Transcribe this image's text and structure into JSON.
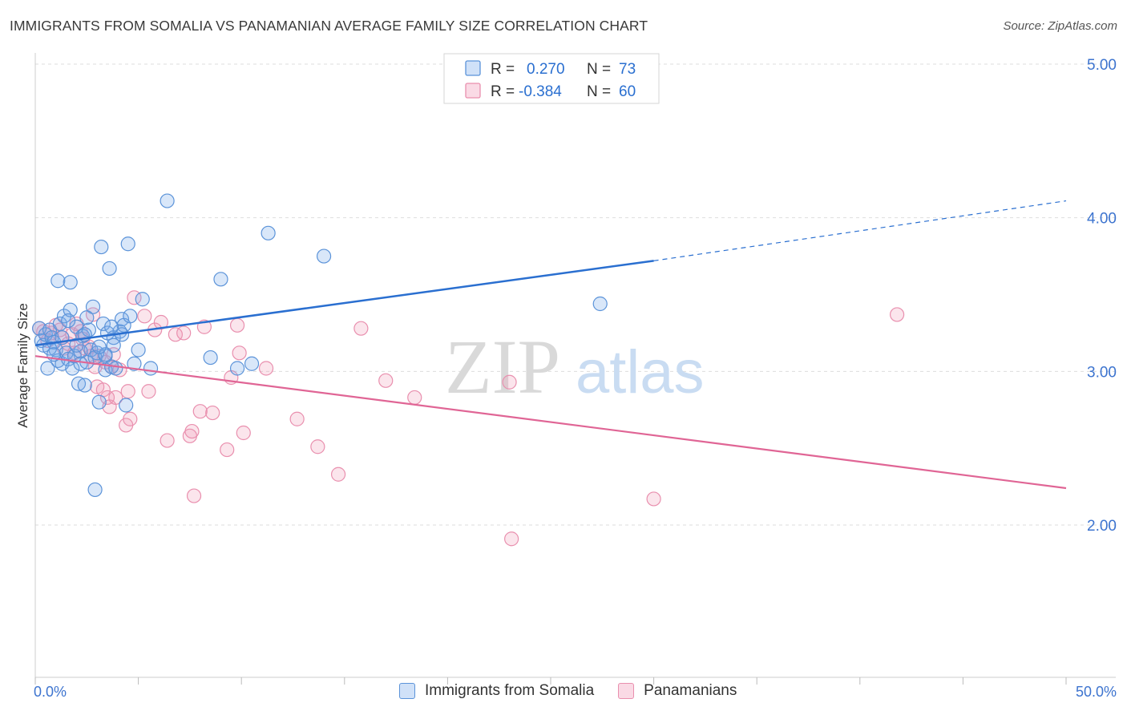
{
  "title": "IMMIGRANTS FROM SOMALIA VS PANAMANIAN AVERAGE FAMILY SIZE CORRELATION CHART",
  "source": "Source: ZipAtlas.com",
  "watermark": {
    "zip": "ZIP",
    "atlas": "atlas"
  },
  "colors": {
    "blue_fill": "rgba(120,170,235,0.28)",
    "blue_stroke": "#5b93d9",
    "blue_line": "#2a6fd0",
    "pink_fill": "rgba(240,150,180,0.25)",
    "pink_stroke": "#e98fae",
    "pink_line": "#e06595",
    "tick_text": "#3d74cf",
    "grid": "#dddddd"
  },
  "legend_top": [
    {
      "r_label": "R =",
      "r_value": "0.270",
      "n_label": "N =",
      "n_value": "73"
    },
    {
      "r_label": "R =",
      "r_value": "-0.384",
      "n_label": "N =",
      "n_value": "60"
    }
  ],
  "legend_bottom": [
    "Immigrants from Somalia",
    "Panamanians"
  ],
  "chart_data": {
    "type": "scatter",
    "title": "IMMIGRANTS FROM SOMALIA VS PANAMANIAN AVERAGE FAMILY SIZE CORRELATION CHART",
    "xlabel": "",
    "ylabel": "Average Family Size",
    "xlim": [
      0,
      0.5
    ],
    "ylim": [
      1.0,
      5.15
    ],
    "x_tick_labels": [
      "0.0%",
      "50.0%"
    ],
    "y_ticks": [
      2.0,
      3.0,
      4.0,
      5.0
    ],
    "y_tick_labels": [
      "2.00",
      "3.00",
      "4.00",
      "5.00"
    ],
    "grid": "horizontal dashed",
    "legend": "top-center",
    "series": [
      {
        "name": "Immigrants from Somalia",
        "color": "blue",
        "trend": {
          "x": [
            0.0,
            0.3,
            0.5
          ],
          "y": [
            3.17,
            3.72,
            4.11
          ],
          "dashed_from_x": 0.3
        },
        "points": [
          [
            0.002,
            3.28
          ],
          [
            0.003,
            3.2
          ],
          [
            0.004,
            3.17
          ],
          [
            0.005,
            3.24
          ],
          [
            0.006,
            3.02
          ],
          [
            0.007,
            3.27
          ],
          [
            0.008,
            3.22
          ],
          [
            0.009,
            3.19
          ],
          [
            0.01,
            3.14
          ],
          [
            0.011,
            3.07
          ],
          [
            0.012,
            3.31
          ],
          [
            0.013,
            3.05
          ],
          [
            0.011,
            3.59
          ],
          [
            0.014,
            3.36
          ],
          [
            0.015,
            3.12
          ],
          [
            0.016,
            3.08
          ],
          [
            0.017,
            3.4
          ],
          [
            0.018,
            3.02
          ],
          [
            0.017,
            3.58
          ],
          [
            0.019,
            3.1
          ],
          [
            0.02,
            3.29
          ],
          [
            0.021,
            2.92
          ],
          [
            0.022,
            3.13
          ],
          [
            0.023,
            3.23
          ],
          [
            0.024,
            2.91
          ],
          [
            0.025,
            3.06
          ],
          [
            0.026,
            3.27
          ],
          [
            0.024,
            3.24
          ],
          [
            0.027,
            3.14
          ],
          [
            0.028,
            3.42
          ],
          [
            0.029,
            2.23
          ],
          [
            0.03,
            3.12
          ],
          [
            0.031,
            2.8
          ],
          [
            0.032,
            3.81
          ],
          [
            0.033,
            3.31
          ],
          [
            0.034,
            3.01
          ],
          [
            0.035,
            3.25
          ],
          [
            0.034,
            3.1
          ],
          [
            0.036,
            3.67
          ],
          [
            0.037,
            3.03
          ],
          [
            0.038,
            3.22
          ],
          [
            0.038,
            3.17
          ],
          [
            0.039,
            3.02
          ],
          [
            0.041,
            3.26
          ],
          [
            0.042,
            3.34
          ],
          [
            0.043,
            3.3
          ],
          [
            0.042,
            3.24
          ],
          [
            0.044,
            2.78
          ],
          [
            0.045,
            3.83
          ],
          [
            0.046,
            3.36
          ],
          [
            0.048,
            3.05
          ],
          [
            0.05,
            3.14
          ],
          [
            0.052,
            3.47
          ],
          [
            0.056,
            3.02
          ],
          [
            0.064,
            4.11
          ],
          [
            0.085,
            3.09
          ],
          [
            0.09,
            3.6
          ],
          [
            0.098,
            3.02
          ],
          [
            0.105,
            3.05
          ],
          [
            0.113,
            3.9
          ],
          [
            0.14,
            3.75
          ],
          [
            0.274,
            3.44
          ],
          [
            0.016,
            3.33
          ],
          [
            0.022,
            3.05
          ],
          [
            0.029,
            3.09
          ],
          [
            0.034,
            3.11
          ],
          [
            0.007,
            3.15
          ],
          [
            0.013,
            3.22
          ],
          [
            0.009,
            3.11
          ],
          [
            0.02,
            3.17
          ],
          [
            0.025,
            3.35
          ],
          [
            0.031,
            3.16
          ],
          [
            0.037,
            3.29
          ]
        ]
      },
      {
        "name": "Panamanians",
        "color": "pink",
        "trend": {
          "x": [
            0.0,
            0.5
          ],
          "y": [
            3.1,
            2.24
          ]
        },
        "points": [
          [
            0.002,
            3.28
          ],
          [
            0.004,
            3.26
          ],
          [
            0.006,
            3.2
          ],
          [
            0.008,
            3.25
          ],
          [
            0.01,
            3.3
          ],
          [
            0.012,
            3.27
          ],
          [
            0.013,
            3.22
          ],
          [
            0.014,
            3.15
          ],
          [
            0.016,
            3.18
          ],
          [
            0.018,
            3.24
          ],
          [
            0.019,
            3.12
          ],
          [
            0.02,
            3.31
          ],
          [
            0.022,
            3.26
          ],
          [
            0.023,
            3.21
          ],
          [
            0.024,
            3.15
          ],
          [
            0.026,
            3.16
          ],
          [
            0.027,
            3.1
          ],
          [
            0.028,
            3.37
          ],
          [
            0.029,
            3.03
          ],
          [
            0.03,
            2.9
          ],
          [
            0.031,
            3.1
          ],
          [
            0.033,
            2.88
          ],
          [
            0.034,
            3.06
          ],
          [
            0.035,
            2.83
          ],
          [
            0.036,
            2.77
          ],
          [
            0.037,
            3.03
          ],
          [
            0.038,
            3.11
          ],
          [
            0.039,
            2.83
          ],
          [
            0.041,
            3.01
          ],
          [
            0.044,
            2.65
          ],
          [
            0.045,
            2.87
          ],
          [
            0.046,
            2.69
          ],
          [
            0.048,
            3.48
          ],
          [
            0.053,
            3.36
          ],
          [
            0.055,
            2.87
          ],
          [
            0.058,
            3.27
          ],
          [
            0.061,
            3.32
          ],
          [
            0.064,
            2.55
          ],
          [
            0.068,
            3.24
          ],
          [
            0.072,
            3.25
          ],
          [
            0.075,
            2.58
          ],
          [
            0.076,
            2.61
          ],
          [
            0.077,
            2.19
          ],
          [
            0.08,
            2.74
          ],
          [
            0.082,
            3.29
          ],
          [
            0.086,
            2.73
          ],
          [
            0.093,
            2.49
          ],
          [
            0.095,
            2.96
          ],
          [
            0.098,
            3.3
          ],
          [
            0.099,
            3.12
          ],
          [
            0.101,
            2.6
          ],
          [
            0.112,
            3.02
          ],
          [
            0.127,
            2.69
          ],
          [
            0.137,
            2.51
          ],
          [
            0.147,
            2.33
          ],
          [
            0.158,
            3.28
          ],
          [
            0.17,
            2.94
          ],
          [
            0.184,
            2.83
          ],
          [
            0.23,
            2.93
          ],
          [
            0.231,
            1.91
          ]
        ],
        "extra_points": [
          [
            0.3,
            2.17
          ],
          [
            0.418,
            3.37
          ]
        ]
      }
    ]
  }
}
